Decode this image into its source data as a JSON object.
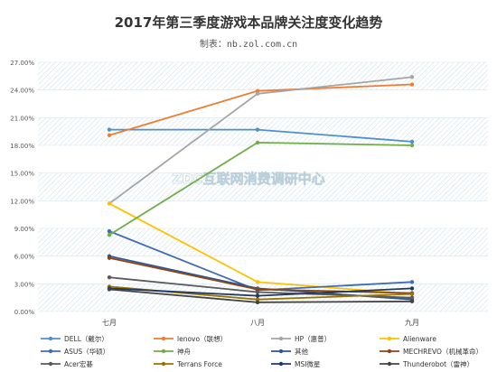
{
  "chart_data": {
    "type": "line",
    "title": "2017年第三季度游戏本品牌关注度变化趋势",
    "subtitle": "制表：nb.zol.com.cn",
    "watermark": "ZDC互联网消费调研中心",
    "categories": [
      "七月",
      "八月",
      "九月"
    ],
    "ylim": [
      0,
      27
    ],
    "yticks": [
      "0.00%",
      "3.00%",
      "6.00%",
      "9.00%",
      "12.00%",
      "15.00%",
      "18.00%",
      "21.00%",
      "24.00%",
      "27.00%"
    ],
    "grid": "hatched-bands",
    "legend_position": "bottom",
    "series": [
      {
        "name": "DELL（戴尔）",
        "color": "#4e90cc",
        "values": [
          19.7,
          19.7,
          18.4
        ]
      },
      {
        "name": "lenovo（联想）",
        "color": "#ed7d31",
        "values": [
          19.1,
          23.9,
          24.6
        ]
      },
      {
        "name": "HP（惠普）",
        "color": "#a5a5a5",
        "values": [
          11.7,
          23.6,
          25.4
        ]
      },
      {
        "name": "Alienware",
        "color": "#ffc000",
        "values": [
          11.7,
          3.2,
          1.9
        ]
      },
      {
        "name": "ASUS（华硕）",
        "color": "#3f6cb5",
        "values": [
          8.7,
          2.3,
          3.2
        ]
      },
      {
        "name": "神舟",
        "color": "#70ad47",
        "values": [
          8.3,
          18.3,
          18.0
        ]
      },
      {
        "name": "其他",
        "color": "#2e5597",
        "values": [
          6.0,
          2.5,
          1.3
        ]
      },
      {
        "name": "MECHREVO（机械革命）",
        "color": "#8b4513",
        "values": [
          5.8,
          2.4,
          2.0
        ]
      },
      {
        "name": "Acer宏碁",
        "color": "#5a5a5a",
        "values": [
          3.7,
          2.1,
          1.5
        ]
      },
      {
        "name": "Terrans Force",
        "color": "#997300",
        "values": [
          2.7,
          1.3,
          1.9
        ]
      },
      {
        "name": "MSI微星",
        "color": "#1f3864",
        "values": [
          2.5,
          1.7,
          2.5
        ]
      },
      {
        "name": "Thunderobot（雷神）",
        "color": "#444444",
        "values": [
          2.4,
          1.0,
          1.1
        ]
      }
    ]
  }
}
